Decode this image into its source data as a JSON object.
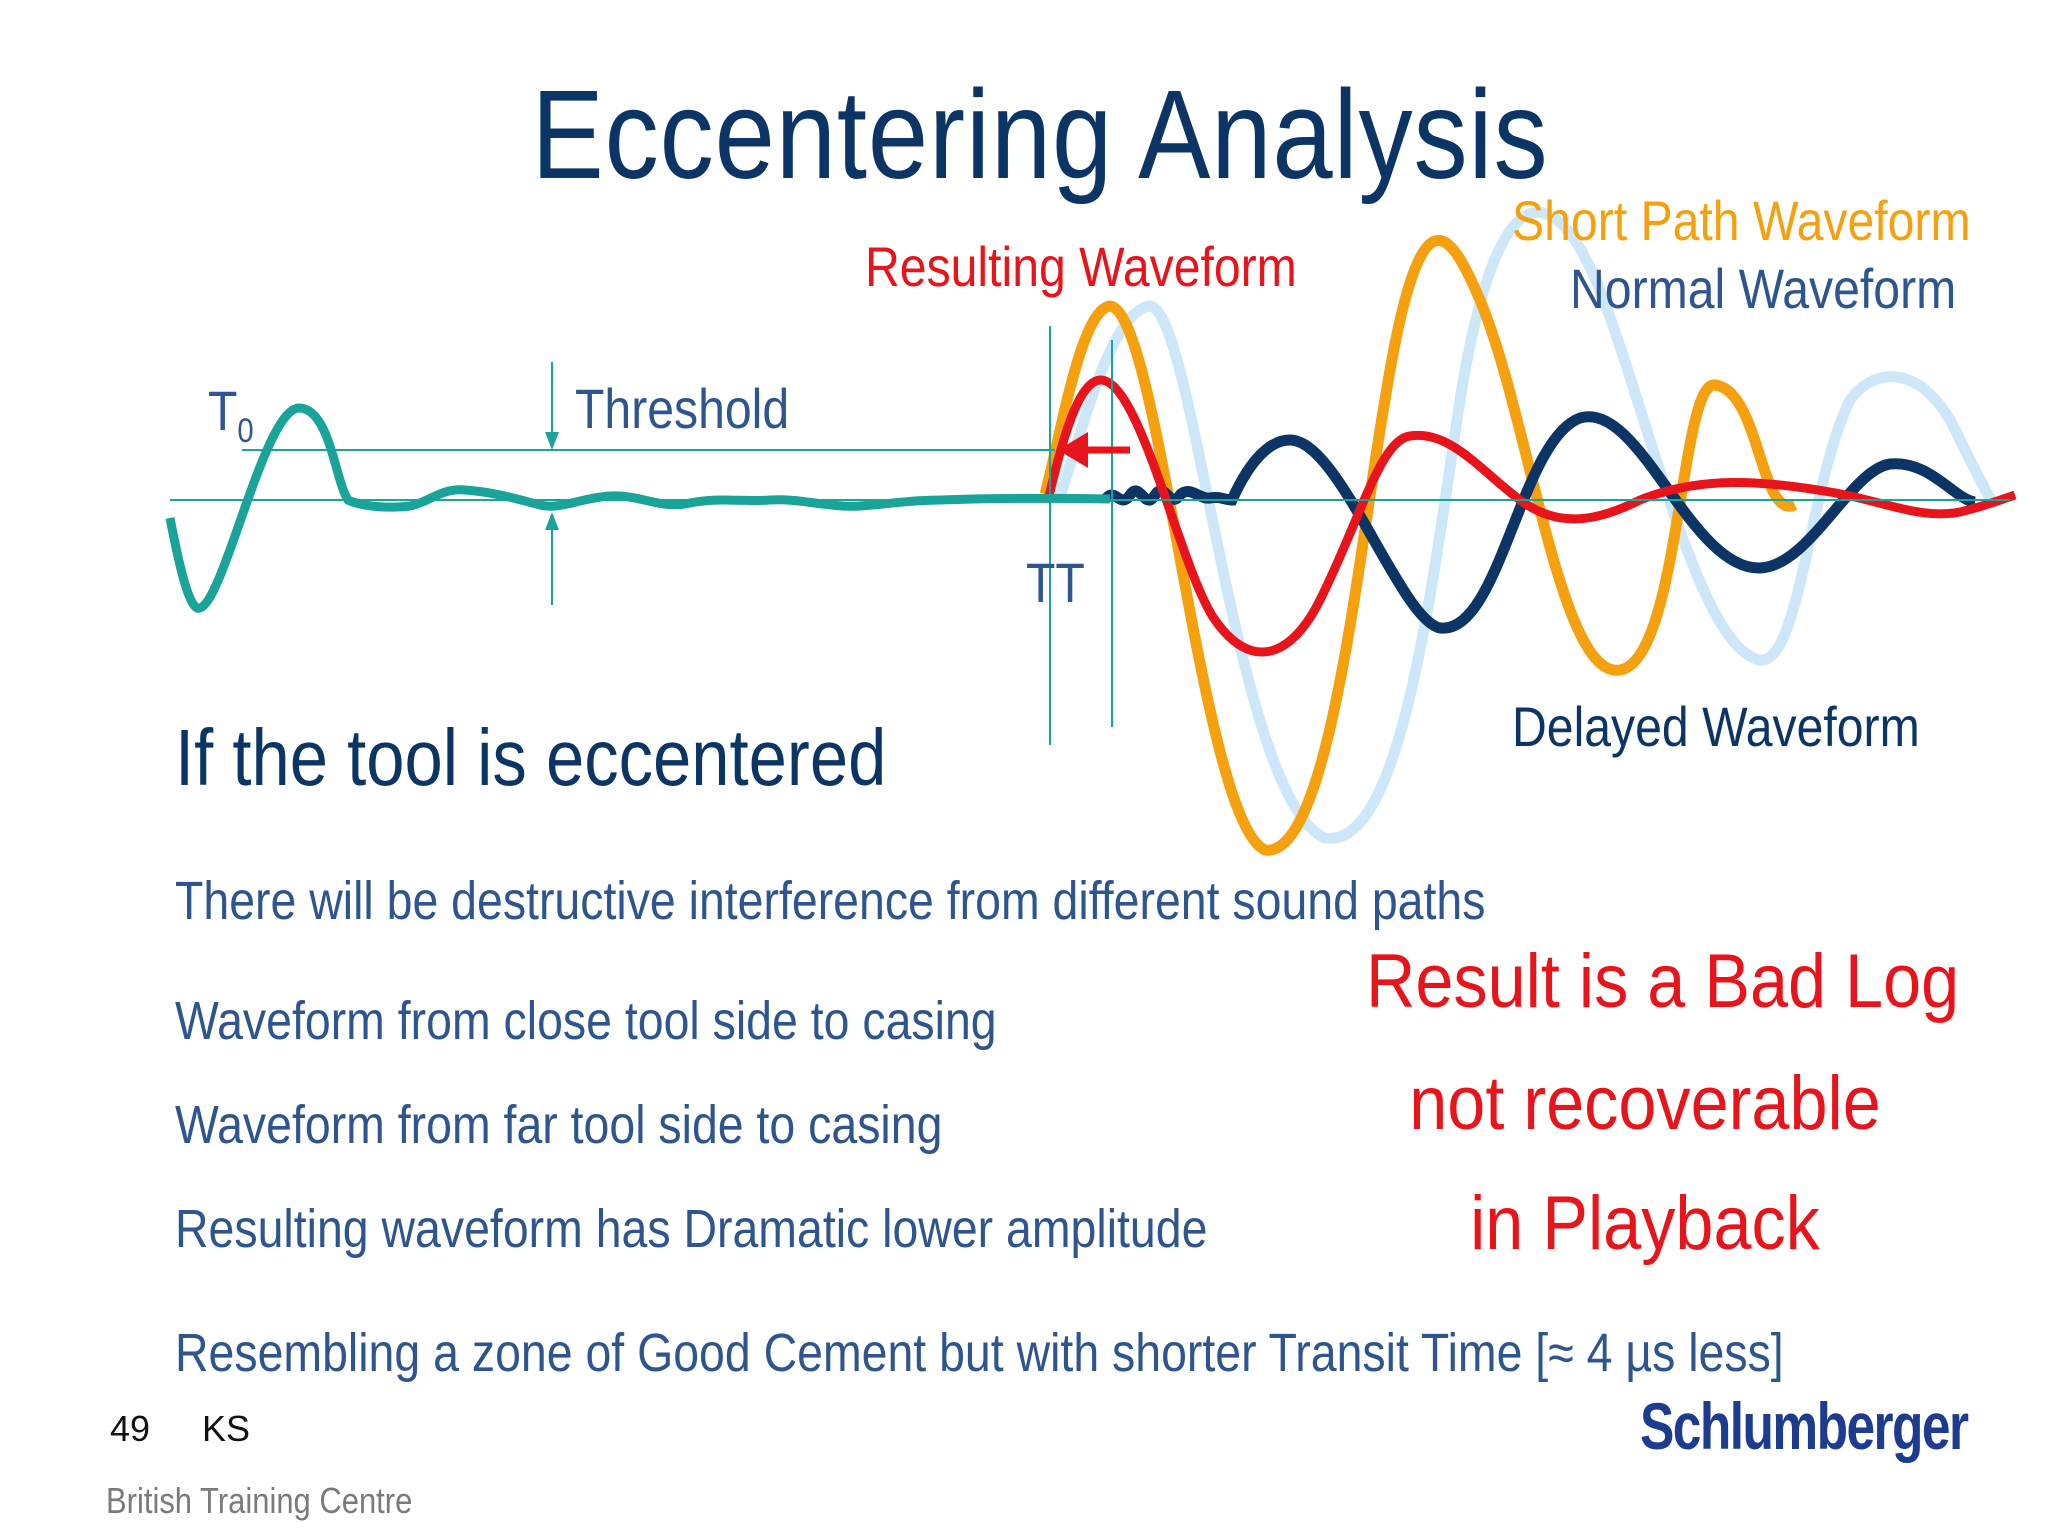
{
  "title": "Eccentering Analysis",
  "labels": {
    "short_path": "Short Path Waveform",
    "normal": "Normal Waveform",
    "resulting": "Resulting Waveform",
    "threshold": "Threshold",
    "t0_main": "T",
    "t0_sub": "0",
    "tt": "TT",
    "delayed": "Delayed Waveform"
  },
  "colors": {
    "navy": "#0c3566",
    "blue_text": "#2e5590",
    "red": "#e8141b",
    "orange": "#f5a00f",
    "teal": "#1aa398",
    "light_blue": "#cde7f8"
  },
  "heading": "If the tool is eccentered",
  "bullets": [
    "There will be destructive interference from different sound paths",
    "Waveform from close tool side to casing",
    "Waveform from far tool side to casing",
    "Resulting waveform has Dramatic lower amplitude",
    "Resembling a zone of Good Cement but with shorter Transit Time [≈ 4 µs less]"
  ],
  "result": [
    "Result is a Bad Log",
    "not recoverable",
    "in Playback"
  ],
  "footer": {
    "page_number": "49",
    "initials": "KS",
    "centre": "British Training Centre",
    "logo": "Schlumberger"
  }
}
